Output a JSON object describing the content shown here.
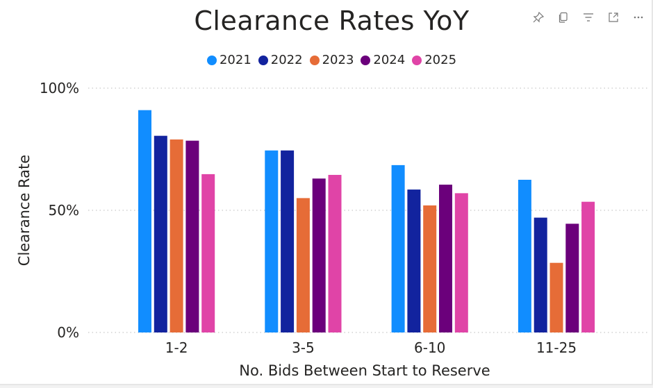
{
  "header": {
    "icons": [
      "pin-icon",
      "copy-icon",
      "filter-icon",
      "focus-mode-icon",
      "more-options-icon"
    ]
  },
  "chart_data": {
    "type": "bar",
    "title": "Clearance Rates YoY",
    "xlabel": "No. Bids Between Start to Reserve",
    "ylabel": "Clearance Rate",
    "categories": [
      "1-2",
      "3-5",
      "6-10",
      "11-25"
    ],
    "ylim": [
      0,
      100
    ],
    "yticks": [
      "0%",
      "50%",
      "100%"
    ],
    "grid": true,
    "legend_position": "top-center",
    "series": [
      {
        "name": "2021",
        "color": "#118dff",
        "values": [
          91,
          74.5,
          68.5,
          62.5
        ]
      },
      {
        "name": "2022",
        "color": "#12239e",
        "values": [
          80.5,
          74.5,
          58.5,
          47
        ]
      },
      {
        "name": "2023",
        "color": "#e66c37",
        "values": [
          79,
          55,
          52,
          28.5
        ]
      },
      {
        "name": "2024",
        "color": "#6b007b",
        "values": [
          78.5,
          63,
          60.5,
          44.5
        ]
      },
      {
        "name": "2025",
        "color": "#e044a7",
        "values": [
          64.8,
          64.5,
          57,
          53.5
        ]
      }
    ]
  }
}
